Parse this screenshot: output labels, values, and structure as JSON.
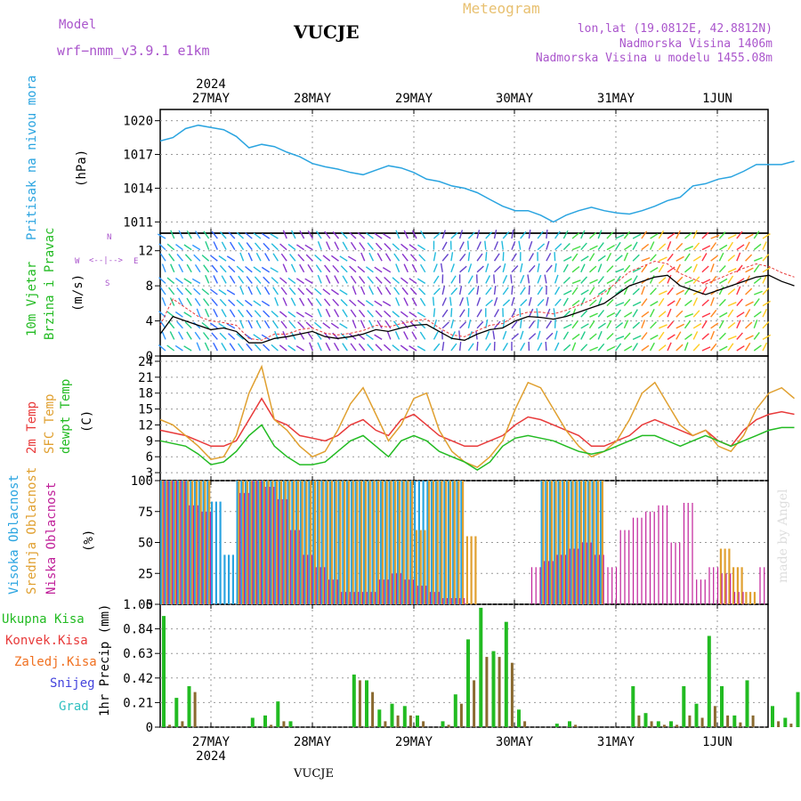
{
  "header": {
    "model_label": "Model",
    "model_name": "wrf−nmm_v3.9.1  e1km",
    "title": "VUCJE",
    "meteogram": "Meteogram",
    "lonlat": "lon,lat (19.0812E, 42.8812N)",
    "elev": "Nadmorska Visina 1406m",
    "elev_model": "Nadmorska Visina u modelu 1455.08m",
    "footer": "VUCJE",
    "watermark": "made by Angel"
  },
  "colors": {
    "pressure": "#2aa4e0",
    "wind_label": "#22bb22",
    "wind_dir_label": "#aa55cc",
    "t2m": "#e83a3a",
    "sfc": "#e0a030",
    "dew": "#22bb22",
    "high_cloud": "#2aa4e0",
    "mid_cloud": "#e0a030",
    "low_cloud": "#c0209a",
    "precip_total": "#22bb22",
    "precip_conv": "#e83a3a",
    "precip_frozen": "#f07020",
    "snow": "#4444dd",
    "hail": "#30c0c0"
  },
  "axis": {
    "top_year": "2024",
    "bottom_year": "2024",
    "days": [
      "27MAY",
      "28MAY",
      "29MAY",
      "30MAY",
      "31MAY",
      "1JUN"
    ]
  },
  "panels": {
    "pressure": {
      "label": "Pritisak na nivou mora",
      "unit": "(hPa)",
      "ticks": [
        "1011",
        "1014",
        "1017",
        "1020"
      ]
    },
    "wind": {
      "label1": "10m Vjetar",
      "label2": "Brzina i Pravac",
      "unit": "(m/s)",
      "ticks": [
        "0",
        "4",
        "8",
        "12"
      ],
      "compass_n": "N",
      "compass_w": "W",
      "compass_e": "E",
      "compass_s": "S"
    },
    "temp": {
      "label1": "2m Temp",
      "label2": "SFC Temp",
      "label3": "dewpt Temp",
      "unit": "(C)",
      "ticks": [
        "3",
        "6",
        "9",
        "12",
        "15",
        "18",
        "21",
        "24"
      ]
    },
    "cloud": {
      "label1": "Visoka Oblacnost",
      "label2": "Srednja Oblacnost",
      "label3": "Niska Oblacnost",
      "unit": "(%)",
      "ticks": [
        "0",
        "25",
        "50",
        "75",
        "100"
      ]
    },
    "precip": {
      "unit": "1hr Precip (mm)",
      "ticks": [
        "0",
        "0.21",
        "0.42",
        "0.63",
        "0.84",
        "1.05"
      ],
      "legend": [
        "Ukupna Kisa",
        "Konvek.Kisa",
        "Zaledj.Kisa",
        "Snijeg",
        "Grad"
      ]
    }
  },
  "chart_data": [
    {
      "type": "line",
      "name": "pressure",
      "x_start": "2024-05-26T12:00",
      "x_step_hours": 3,
      "ylim": [
        1010,
        1021
      ],
      "values": [
        1018.2,
        1018.5,
        1019.3,
        1019.6,
        1019.4,
        1019.2,
        1018.6,
        1017.6,
        1017.9,
        1017.7,
        1017.2,
        1016.8,
        1016.2,
        1015.9,
        1015.7,
        1015.4,
        1015.2,
        1015.6,
        1016.0,
        1015.8,
        1015.4,
        1014.8,
        1014.6,
        1014.2,
        1014.0,
        1013.6,
        1013.0,
        1012.4,
        1012.0,
        1012.0,
        1011.6,
        1011.0,
        1011.6,
        1012.0,
        1012.3,
        1012.0,
        1011.8,
        1011.7,
        1012.0,
        1012.4,
        1012.9,
        1013.2,
        1014.2,
        1014.4,
        1014.8,
        1015.0,
        1015.5,
        1016.1,
        1016.1,
        1016.1,
        1016.4
      ]
    },
    {
      "type": "line",
      "name": "wind_speed",
      "x_start": "2024-05-26T12:00",
      "x_step_hours": 3,
      "ylim": [
        0,
        14
      ],
      "values": [
        2.5,
        4.5,
        4.0,
        3.5,
        3.0,
        3.2,
        2.8,
        1.5,
        1.5,
        2.0,
        2.2,
        2.5,
        2.8,
        2.2,
        2.0,
        2.2,
        2.5,
        3.0,
        2.8,
        3.2,
        3.5,
        3.6,
        2.8,
        2.0,
        1.8,
        2.5,
        3.0,
        3.2,
        4.0,
        4.5,
        4.4,
        4.2,
        4.5,
        5.0,
        5.5,
        6.0,
        7.0,
        8.0,
        8.5,
        9.0,
        9.2,
        8.0,
        7.5,
        7.0,
        7.5,
        8.0,
        8.5,
        9.0,
        9.2,
        8.5,
        8.0
      ],
      "gust": [
        3.5,
        6.5,
        5.5,
        4.5,
        4.0,
        3.8,
        3.5,
        2.0,
        1.8,
        2.5,
        2.5,
        3.0,
        3.2,
        2.6,
        2.4,
        2.6,
        2.9,
        3.5,
        3.3,
        3.7,
        4.0,
        4.2,
        3.2,
        2.4,
        2.2,
        2.9,
        3.5,
        3.7,
        4.6,
        5.0,
        5.0,
        4.8,
        5.2,
        5.8,
        6.4,
        7.2,
        8.4,
        9.6,
        10.2,
        10.8,
        10.5,
        9.4,
        8.8,
        8.2,
        8.8,
        9.4,
        10.0,
        10.5,
        10.2,
        9.5,
        9.0
      ]
    },
    {
      "type": "line",
      "name": "temperature",
      "x_start": "2024-05-26T12:00",
      "x_step_hours": 3,
      "ylim": [
        1.5,
        25
      ],
      "series": [
        {
          "name": "2m Temp",
          "values": [
            11,
            10.5,
            10,
            9,
            8,
            8,
            9,
            13,
            17,
            13,
            12,
            10,
            9.5,
            9,
            10,
            12,
            13,
            11,
            10,
            13,
            14,
            12,
            10,
            9,
            8,
            8,
            9,
            10,
            12,
            13.5,
            13,
            12,
            11,
            10,
            8,
            8,
            9,
            10,
            12,
            13,
            12,
            11,
            10,
            11,
            9,
            8,
            11,
            13,
            14,
            14.5,
            14
          ]
        },
        {
          "name": "SFC Temp",
          "values": [
            13,
            12,
            10,
            8,
            5.5,
            6,
            10,
            18,
            23,
            13,
            11,
            8,
            6,
            7,
            11,
            16,
            19,
            14,
            9,
            12,
            17,
            18,
            11,
            7,
            5,
            4,
            6,
            9,
            15,
            20,
            19,
            15,
            11,
            8,
            6,
            7,
            9,
            13,
            18,
            20,
            16,
            12,
            10,
            11,
            8,
            7,
            10,
            15,
            18,
            19,
            17
          ]
        },
        {
          "name": "dewpt Temp",
          "values": [
            9,
            8.5,
            8,
            6.5,
            4.5,
            5,
            7,
            10,
            12,
            8,
            6,
            4.5,
            4.5,
            5,
            7,
            9,
            10,
            8,
            6,
            9,
            10,
            9,
            7,
            6,
            5,
            3.5,
            5,
            8,
            9.5,
            10,
            9.5,
            9,
            8,
            7,
            6.5,
            7,
            8,
            9,
            10,
            10,
            9,
            8,
            9,
            10,
            9,
            8,
            9,
            10,
            11,
            11.5,
            11.5
          ]
        }
      ]
    },
    {
      "type": "bar",
      "name": "cloud",
      "x_start": "2024-05-26T12:00",
      "x_step_hours": 3,
      "ylim": [
        0,
        100
      ],
      "series": [
        {
          "name": "Visoka Oblacnost",
          "values": [
            100,
            100,
            100,
            100,
            83,
            40,
            100,
            100,
            100,
            100,
            100,
            100,
            100,
            100,
            100,
            100,
            100,
            100,
            100,
            100,
            100,
            100,
            100,
            100,
            0,
            0,
            0,
            0,
            0,
            0,
            100,
            100,
            100,
            100,
            100,
            0,
            0,
            0,
            0,
            0,
            0,
            0,
            0,
            0,
            0,
            0,
            0,
            0,
            0,
            0,
            0
          ]
        },
        {
          "name": "Srednja Oblacnost",
          "values": [
            100,
            100,
            100,
            100,
            0,
            0,
            100,
            100,
            100,
            100,
            100,
            100,
            100,
            100,
            100,
            100,
            100,
            100,
            100,
            100,
            60,
            100,
            100,
            100,
            55,
            0,
            0,
            0,
            0,
            0,
            100,
            100,
            100,
            100,
            100,
            0,
            0,
            0,
            0,
            0,
            0,
            0,
            0,
            0,
            45,
            30,
            10,
            0,
            0,
            0,
            0
          ]
        },
        {
          "name": "Niska Oblacnost",
          "values": [
            100,
            100,
            80,
            75,
            0,
            0,
            90,
            100,
            95,
            85,
            60,
            40,
            30,
            20,
            10,
            10,
            10,
            20,
            25,
            20,
            15,
            10,
            5,
            5,
            0,
            0,
            0,
            0,
            0,
            30,
            35,
            40,
            45,
            50,
            40,
            30,
            60,
            70,
            75,
            80,
            50,
            82,
            20,
            30,
            25,
            10,
            0,
            30,
            20,
            52,
            0
          ]
        }
      ]
    },
    {
      "type": "bar",
      "name": "precip",
      "x_start": "2024-05-26T12:00",
      "x_step_hours": 3,
      "ylim": [
        0,
        1.05
      ],
      "series": [
        {
          "name": "Ukupna Kisa",
          "values": [
            0.95,
            0.25,
            0.35,
            0,
            0,
            0,
            0,
            0.08,
            0.1,
            0.22,
            0.05,
            0,
            0,
            0,
            0,
            0.45,
            0.4,
            0.15,
            0.2,
            0.18,
            0.1,
            0,
            0.05,
            0.28,
            0.75,
            1.02,
            0.65,
            0.9,
            0.15,
            0,
            0,
            0.03,
            0.05,
            0,
            0,
            0,
            0,
            0.35,
            0.12,
            0.05,
            0.05,
            0.35,
            0.2,
            0.78,
            0.35,
            0.1,
            0.4,
            0,
            0.18,
            0.08,
            0.3
          ]
        },
        {
          "name": "Konvek.Kisa",
          "values": [
            0.02,
            0.05,
            0.3,
            0,
            0,
            0,
            0,
            0,
            0.02,
            0.05,
            0,
            0,
            0,
            0,
            0,
            0.4,
            0.3,
            0.05,
            0.1,
            0.1,
            0.05,
            0,
            0.02,
            0.2,
            0.4,
            0.6,
            0.6,
            0.55,
            0.05,
            0,
            0,
            0,
            0.02,
            0,
            0,
            0,
            0,
            0.1,
            0.05,
            0.02,
            0.02,
            0.1,
            0.08,
            0.18,
            0.1,
            0.04,
            0.1,
            0,
            0.05,
            0.03,
            0.3
          ]
        }
      ]
    }
  ]
}
